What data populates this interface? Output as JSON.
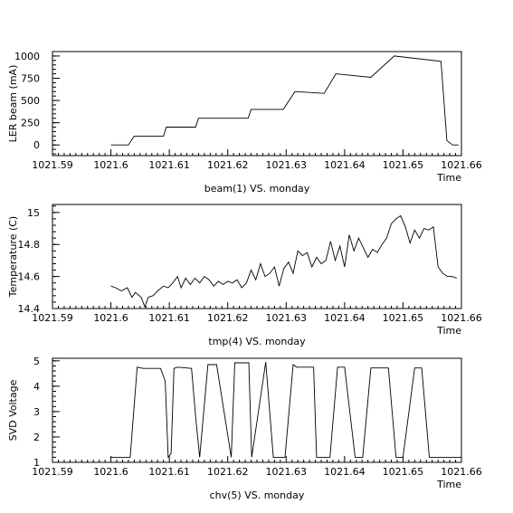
{
  "chart_data": [
    {
      "type": "line",
      "xlabel": "beam(1) VS. monday",
      "x_axis_name": "Time",
      "ylabel": "LER beam (mA)",
      "xlim": [
        1021.59,
        1021.66
      ],
      "ylim": [
        -120,
        1050
      ],
      "x_ticks": [
        "1021.59",
        "1021.6",
        "1021.61",
        "1021.62",
        "1021.63",
        "1021.64",
        "1021.65",
        "1021.66"
      ],
      "y_ticks": [
        "0",
        "250",
        "500",
        "750",
        "1000"
      ],
      "series": [
        {
          "x": [
            1021.6,
            1021.603,
            1021.604,
            1021.609,
            1021.6095,
            1021.6145,
            1021.615,
            1021.6205,
            1021.621,
            1021.6235,
            1021.624,
            1021.6295,
            1021.6315,
            1021.6365,
            1021.6385,
            1021.6445,
            1021.6485,
            1021.6565,
            1021.6575,
            1021.6585,
            1021.6595
          ],
          "y": [
            0,
            0,
            100,
            100,
            200,
            200,
            300,
            300,
            300,
            300,
            400,
            400,
            600,
            580,
            800,
            760,
            1000,
            940,
            50,
            0,
            0
          ]
        }
      ]
    },
    {
      "type": "line",
      "xlabel": "tmp(4) VS. monday",
      "x_axis_name": "Time",
      "ylabel": "Temperature (C)",
      "xlim": [
        1021.59,
        1021.66
      ],
      "ylim": [
        14.4,
        15.05
      ],
      "x_ticks": [
        "1021.59",
        "1021.6",
        "1021.61",
        "1021.62",
        "1021.63",
        "1021.64",
        "1021.65",
        "1021.66"
      ],
      "y_ticks": [
        "14.4",
        "14.6",
        "14.8",
        "15"
      ],
      "series": [
        {
          "x": [
            1021.6,
            1021.6008,
            1021.6018,
            1021.6028,
            1021.6036,
            1021.6042,
            1021.6052,
            1021.6058,
            1021.6064,
            1021.6072,
            1021.608,
            1021.609,
            1021.6098,
            1021.6106,
            1021.6114,
            1021.612,
            1021.6128,
            1021.6136,
            1021.6144,
            1021.6152,
            1021.616,
            1021.6168,
            1021.6176,
            1021.6184,
            1021.6192,
            1021.62,
            1021.6208,
            1021.6216,
            1021.6224,
            1021.6232,
            1021.624,
            1021.6248,
            1021.6256,
            1021.6264,
            1021.6272,
            1021.628,
            1021.6288,
            1021.6296,
            1021.6304,
            1021.6312,
            1021.632,
            1021.6328,
            1021.6336,
            1021.6344,
            1021.6352,
            1021.636,
            1021.6368,
            1021.6376,
            1021.6384,
            1021.6392,
            1021.64,
            1021.6408,
            1021.6416,
            1021.6424,
            1021.6432,
            1021.644,
            1021.6448,
            1021.6456,
            1021.6464,
            1021.6472,
            1021.648,
            1021.6488,
            1021.6496,
            1021.6504,
            1021.6512,
            1021.652,
            1021.6528,
            1021.6536,
            1021.6544,
            1021.6552,
            1021.656,
            1021.6568,
            1021.6576,
            1021.6584,
            1021.6592
          ],
          "y": [
            14.54,
            14.53,
            14.51,
            14.53,
            14.47,
            14.5,
            14.47,
            14.41,
            14.47,
            14.48,
            14.51,
            14.54,
            14.53,
            14.56,
            14.6,
            14.53,
            14.59,
            14.55,
            14.59,
            14.56,
            14.6,
            14.58,
            14.54,
            14.57,
            14.55,
            14.57,
            14.56,
            14.58,
            14.53,
            14.56,
            14.64,
            14.58,
            14.68,
            14.6,
            14.62,
            14.66,
            14.54,
            14.65,
            14.69,
            14.62,
            14.76,
            14.73,
            14.75,
            14.66,
            14.72,
            14.68,
            14.7,
            14.82,
            14.7,
            14.79,
            14.66,
            14.86,
            14.76,
            14.84,
            14.78,
            14.72,
            14.77,
            14.75,
            14.8,
            14.84,
            14.93,
            14.96,
            14.98,
            14.91,
            14.81,
            14.89,
            14.84,
            14.9,
            14.89,
            14.91,
            14.66,
            14.62,
            14.6,
            14.6,
            14.59
          ]
        }
      ]
    },
    {
      "type": "line",
      "xlabel": "chv(5) VS. monday",
      "x_axis_name": "Time",
      "ylabel": "SVD Voltage",
      "xlim": [
        1021.59,
        1021.66
      ],
      "ylim": [
        1,
        5.1
      ],
      "x_ticks": [
        "1021.59",
        "1021.6",
        "1021.61",
        "1021.62",
        "1021.63",
        "1021.64",
        "1021.65",
        "1021.66"
      ],
      "y_ticks": [
        "1",
        "2",
        "3",
        "4",
        "5"
      ],
      "series": [
        {
          "x": [
            1021.6,
            1021.6033,
            1021.6045,
            1021.6055,
            1021.6085,
            1021.6093,
            1021.6098,
            1021.6103,
            1021.6108,
            1021.6114,
            1021.6138,
            1021.6145,
            1021.6152,
            1021.6166,
            1021.6172,
            1021.6177,
            1021.6181,
            1021.6206,
            1021.6212,
            1021.6224,
            1021.6236,
            1021.6241,
            1021.6265,
            1021.6278,
            1021.6285,
            1021.6298,
            1021.6312,
            1021.6318,
            1021.6347,
            1021.6352,
            1021.6375,
            1021.6388,
            1021.64,
            1021.6418,
            1021.6431,
            1021.6445,
            1021.6475,
            1021.6488,
            1021.65,
            1021.652,
            1021.6532,
            1021.6545,
            1021.6575,
            1021.6588,
            1021.66
          ],
          "y": [
            1.2,
            1.2,
            4.75,
            4.7,
            4.7,
            4.2,
            1.2,
            1.35,
            4.7,
            4.75,
            4.7,
            2.8,
            1.2,
            4.85,
            4.85,
            4.85,
            4.85,
            1.2,
            4.92,
            4.92,
            4.92,
            1.2,
            4.95,
            1.2,
            1.2,
            1.2,
            4.85,
            4.75,
            4.75,
            1.2,
            1.2,
            4.75,
            4.75,
            1.2,
            1.2,
            4.72,
            4.72,
            1.2,
            1.2,
            4.72,
            4.72,
            1.2,
            1.2,
            1.2,
            1.2
          ]
        }
      ]
    }
  ]
}
